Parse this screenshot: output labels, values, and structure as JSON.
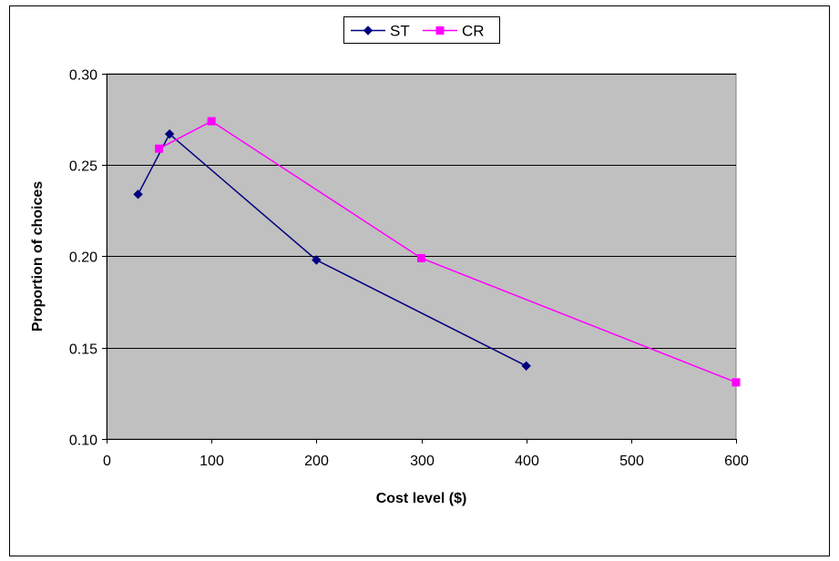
{
  "chart_data": {
    "type": "line",
    "xlabel": "Cost level ($)",
    "ylabel": "Proportion of choices",
    "xlim": [
      0,
      600
    ],
    "ylim": [
      0.1,
      0.3
    ],
    "xticks": [
      0,
      100,
      200,
      300,
      400,
      500,
      600
    ],
    "yticks": [
      0.1,
      0.15,
      0.2,
      0.25,
      0.3
    ],
    "xtick_labels": [
      "0",
      "100",
      "200",
      "300",
      "400",
      "500",
      "600"
    ],
    "ytick_labels": [
      "0.10",
      "0.15",
      "0.20",
      "0.25",
      "0.30"
    ],
    "grid": "horizontal",
    "legend_position": "top-center",
    "plot_background": "#C0C0C0",
    "series": [
      {
        "name": "ST",
        "color": "#000080",
        "marker": "diamond",
        "x": [
          30,
          60,
          200,
          400
        ],
        "y": [
          0.234,
          0.267,
          0.198,
          0.14
        ]
      },
      {
        "name": "CR",
        "color": "#FF00FF",
        "marker": "square",
        "x": [
          50,
          100,
          300,
          600
        ],
        "y": [
          0.259,
          0.274,
          0.199,
          0.131
        ]
      }
    ]
  }
}
